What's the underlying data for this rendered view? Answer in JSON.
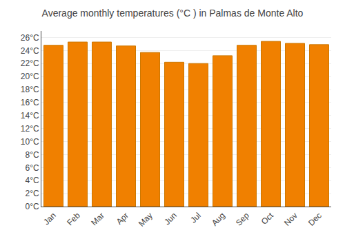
{
  "chart_data": {
    "type": "bar",
    "title": "Average monthly temperatures (°C ) in Palmas de Monte Alto",
    "categories": [
      "Jan",
      "Feb",
      "Mar",
      "Apr",
      "May",
      "Jun",
      "Jul",
      "Aug",
      "Sep",
      "Oct",
      "Nov",
      "Dec"
    ],
    "values": [
      24.8,
      25.3,
      25.3,
      24.7,
      23.7,
      22.2,
      22.0,
      23.2,
      24.8,
      25.4,
      25.1,
      24.9
    ],
    "color": "#F08000",
    "ylim": [
      0,
      27
    ],
    "yticks": [
      {
        "value": 0,
        "label": "0°C"
      },
      {
        "value": 2,
        "label": "2°C"
      },
      {
        "value": 4,
        "label": "4°C"
      },
      {
        "value": 6,
        "label": "6°C"
      },
      {
        "value": 8,
        "label": "8°C"
      },
      {
        "value": 10,
        "label": "10°C"
      },
      {
        "value": 12,
        "label": "12°C"
      },
      {
        "value": 14,
        "label": "14°C"
      },
      {
        "value": 16,
        "label": "16°C"
      },
      {
        "value": 18,
        "label": "18°C"
      },
      {
        "value": 20,
        "label": "20°C"
      },
      {
        "value": 22,
        "label": "22°C"
      },
      {
        "value": 24,
        "label": "24°C"
      },
      {
        "value": 26,
        "label": "26°C"
      }
    ],
    "grid": true
  }
}
